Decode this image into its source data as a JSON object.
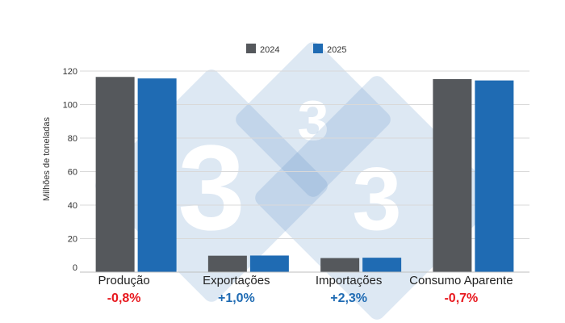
{
  "chart_data": {
    "type": "bar",
    "title": "",
    "xlabel": "",
    "ylabel": "Milhões de toneladas",
    "ylim": [
      0,
      120
    ],
    "yticks": [
      0,
      20,
      40,
      60,
      80,
      100,
      120
    ],
    "grid": true,
    "legend_position": "top-center",
    "categories": [
      "Produção",
      "Exportações",
      "Importações",
      "Consumo Aparente"
    ],
    "series": [
      {
        "name": "2024",
        "color": "#55585c",
        "values": [
          116.5,
          9.8,
          8.4,
          115.2
        ]
      },
      {
        "name": "2025",
        "color": "#1f6bb3",
        "values": [
          115.6,
          9.9,
          8.6,
          114.4
        ]
      }
    ],
    "changes": [
      {
        "text": "-0,8%",
        "color": "#e8191f"
      },
      {
        "text": "+1,0%",
        "color": "#1f6bb3"
      },
      {
        "text": "+2,3%",
        "color": "#1f6bb3"
      },
      {
        "text": "-0,7%",
        "color": "#e8191f"
      }
    ],
    "watermark_color": "#5b8fc7"
  }
}
